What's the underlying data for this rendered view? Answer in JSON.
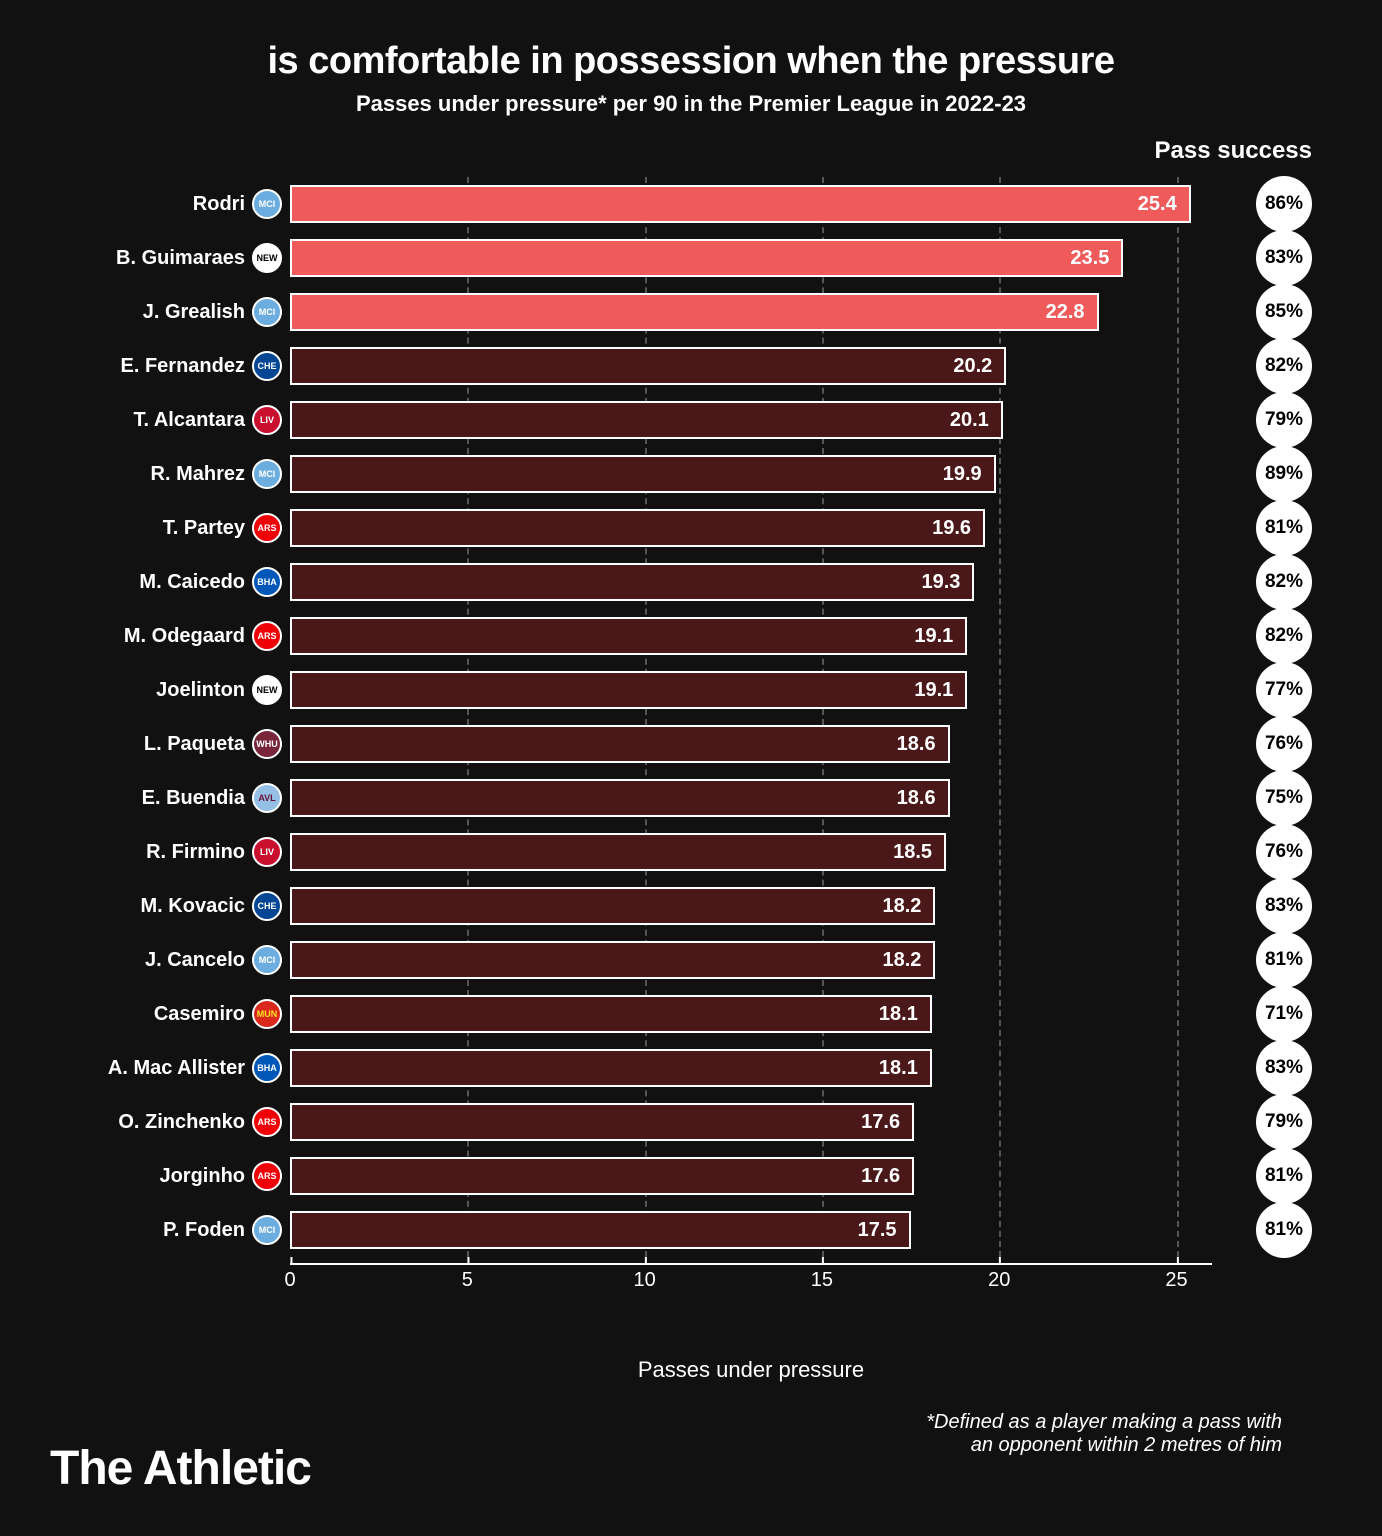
{
  "title": "is comfortable in possession when the pressure",
  "subtitle": "Passes under pressure* per 90 in the Premier League in 2022-23",
  "pass_success_header": "Pass success",
  "x_axis_label": "Passes under pressure",
  "footnote_line1": "*Defined as a player making a pass with",
  "footnote_line2": "an opponent within 2 metres of him",
  "brand": "The Athletic",
  "chart": {
    "type": "bar",
    "xlim": [
      0,
      26
    ],
    "xticks": [
      0,
      5,
      10,
      15,
      20,
      25
    ],
    "bar_border_color": "#ffffff",
    "highlight_color": "#ef5b5b",
    "normal_color": "#4a1818",
    "background_color": "#111111",
    "grid_color": "#555555",
    "badge_bg": "#ffffff",
    "badge_text": "#000000",
    "value_fontsize": 20,
    "label_fontsize": 20,
    "players": [
      {
        "name": "Rodri",
        "team": "MCI",
        "crest_bg": "#6caddf",
        "crest_fg": "#ffffff",
        "value": 25.4,
        "success": "86%",
        "highlight": true
      },
      {
        "name": "B. Guimaraes",
        "team": "NEW",
        "crest_bg": "#ffffff",
        "crest_fg": "#000000",
        "value": 23.5,
        "success": "83%",
        "highlight": true
      },
      {
        "name": "J. Grealish",
        "team": "MCI",
        "crest_bg": "#6caddf",
        "crest_fg": "#ffffff",
        "value": 22.8,
        "success": "85%",
        "highlight": true
      },
      {
        "name": "E. Fernandez",
        "team": "CHE",
        "crest_bg": "#034694",
        "crest_fg": "#ffffff",
        "value": 20.2,
        "success": "82%",
        "highlight": false
      },
      {
        "name": "T. Alcantara",
        "team": "LIV",
        "crest_bg": "#c8102e",
        "crest_fg": "#ffffff",
        "value": 20.1,
        "success": "79%",
        "highlight": false
      },
      {
        "name": "R. Mahrez",
        "team": "MCI",
        "crest_bg": "#6caddf",
        "crest_fg": "#ffffff",
        "value": 19.9,
        "success": "89%",
        "highlight": false
      },
      {
        "name": "T. Partey",
        "team": "ARS",
        "crest_bg": "#ef0107",
        "crest_fg": "#ffffff",
        "value": 19.6,
        "success": "81%",
        "highlight": false
      },
      {
        "name": "M. Caicedo",
        "team": "BHA",
        "crest_bg": "#0057b8",
        "crest_fg": "#ffffff",
        "value": 19.3,
        "success": "82%",
        "highlight": false
      },
      {
        "name": "M. Odegaard",
        "team": "ARS",
        "crest_bg": "#ef0107",
        "crest_fg": "#ffffff",
        "value": 19.1,
        "success": "82%",
        "highlight": false
      },
      {
        "name": "Joelinton",
        "team": "NEW",
        "crest_bg": "#ffffff",
        "crest_fg": "#000000",
        "value": 19.1,
        "success": "77%",
        "highlight": false
      },
      {
        "name": "L. Paqueta",
        "team": "WHU",
        "crest_bg": "#7a263a",
        "crest_fg": "#ffffff",
        "value": 18.6,
        "success": "76%",
        "highlight": false
      },
      {
        "name": "E. Buendia",
        "team": "AVL",
        "crest_bg": "#95bfe5",
        "crest_fg": "#670e36",
        "value": 18.6,
        "success": "75%",
        "highlight": false
      },
      {
        "name": "R. Firmino",
        "team": "LIV",
        "crest_bg": "#c8102e",
        "crest_fg": "#ffffff",
        "value": 18.5,
        "success": "76%",
        "highlight": false
      },
      {
        "name": "M. Kovacic",
        "team": "CHE",
        "crest_bg": "#034694",
        "crest_fg": "#ffffff",
        "value": 18.2,
        "success": "83%",
        "highlight": false
      },
      {
        "name": "J. Cancelo",
        "team": "MCI",
        "crest_bg": "#6caddf",
        "crest_fg": "#ffffff",
        "value": 18.2,
        "success": "81%",
        "highlight": false
      },
      {
        "name": "Casemiro",
        "team": "MUN",
        "crest_bg": "#da291c",
        "crest_fg": "#fbe122",
        "value": 18.1,
        "success": "71%",
        "highlight": false
      },
      {
        "name": "A. Mac Allister",
        "team": "BHA",
        "crest_bg": "#0057b8",
        "crest_fg": "#ffffff",
        "value": 18.1,
        "success": "83%",
        "highlight": false
      },
      {
        "name": "O. Zinchenko",
        "team": "ARS",
        "crest_bg": "#ef0107",
        "crest_fg": "#ffffff",
        "value": 17.6,
        "success": "79%",
        "highlight": false
      },
      {
        "name": "Jorginho",
        "team": "ARS",
        "crest_bg": "#ef0107",
        "crest_fg": "#ffffff",
        "value": 17.6,
        "success": "81%",
        "highlight": false
      },
      {
        "name": "P. Foden",
        "team": "MCI",
        "crest_bg": "#6caddf",
        "crest_fg": "#ffffff",
        "value": 17.5,
        "success": "81%",
        "highlight": false
      }
    ]
  }
}
